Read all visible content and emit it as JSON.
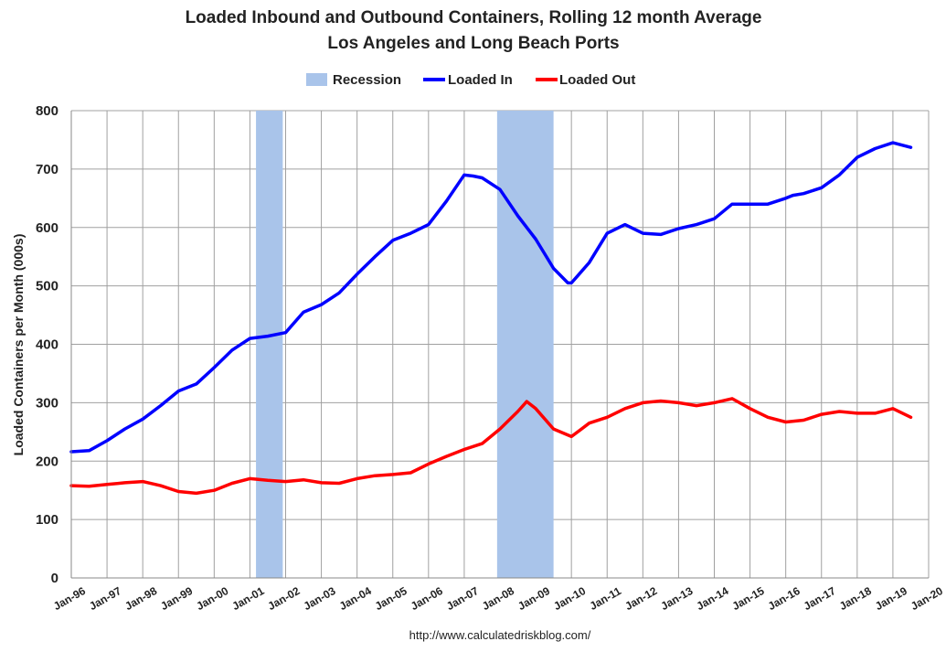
{
  "chart_data": {
    "type": "line",
    "title": "Loaded Inbound and Outbound Containers, Rolling 12 month Average",
    "subtitle": "Los Angeles and Long Beach Ports",
    "ylabel": "Loaded Containers per Month (000s)",
    "xlabel": "",
    "ylim": [
      0,
      800
    ],
    "yticks": [
      0,
      100,
      200,
      300,
      400,
      500,
      600,
      700,
      800
    ],
    "xlim": [
      1996,
      2020
    ],
    "xtick_labels": [
      "Jan-96",
      "Jan-97",
      "Jan-98",
      "Jan-99",
      "Jan-00",
      "Jan-01",
      "Jan-02",
      "Jan-03",
      "Jan-04",
      "Jan-05",
      "Jan-06",
      "Jan-07",
      "Jan-08",
      "Jan-09",
      "Jan-10",
      "Jan-11",
      "Jan-12",
      "Jan-13",
      "Jan-14",
      "Jan-15",
      "Jan-16",
      "Jan-17",
      "Jan-18",
      "Jan-19",
      "Jan-20"
    ],
    "grid": true,
    "legend_position": "top-center",
    "legend": [
      {
        "name": "Recession",
        "color": "#a9c4ea",
        "kind": "box"
      },
      {
        "name": "Loaded In",
        "color": "#0000ff",
        "kind": "line"
      },
      {
        "name": "Loaded Out",
        "color": "#ff0000",
        "kind": "line"
      }
    ],
    "recessions": [
      {
        "start": 2001.17,
        "end": 2001.92
      },
      {
        "start": 2007.92,
        "end": 2009.5
      }
    ],
    "series": [
      {
        "name": "Loaded In",
        "color": "#0000ff",
        "x": [
          1996.0,
          1996.5,
          1997.0,
          1997.5,
          1998.0,
          1998.5,
          1999.0,
          1999.5,
          2000.0,
          2000.5,
          2001.0,
          2001.5,
          2002.0,
          2002.5,
          2003.0,
          2003.5,
          2004.0,
          2004.5,
          2005.0,
          2005.5,
          2006.0,
          2006.5,
          2007.0,
          2007.25,
          2007.5,
          2008.0,
          2008.5,
          2009.0,
          2009.5,
          2009.9,
          2010.0,
          2010.5,
          2011.0,
          2011.5,
          2012.0,
          2012.5,
          2013.0,
          2013.5,
          2014.0,
          2014.5,
          2015.0,
          2015.5,
          2016.0,
          2016.2,
          2016.5,
          2017.0,
          2017.5,
          2018.0,
          2018.5,
          2019.0,
          2019.5
        ],
        "y": [
          216,
          218,
          235,
          255,
          272,
          295,
          320,
          332,
          360,
          390,
          410,
          414,
          420,
          455,
          468,
          488,
          520,
          550,
          578,
          590,
          605,
          645,
          690,
          688,
          685,
          665,
          620,
          580,
          530,
          505,
          505,
          540,
          590,
          605,
          590,
          588,
          598,
          605,
          615,
          640,
          640,
          640,
          650,
          655,
          658,
          668,
          690,
          720,
          735,
          745,
          737
        ]
      },
      {
        "name": "Loaded Out",
        "color": "#ff0000",
        "x": [
          1996.0,
          1996.5,
          1997.0,
          1997.5,
          1998.0,
          1998.5,
          1999.0,
          1999.5,
          2000.0,
          2000.5,
          2001.0,
          2001.5,
          2002.0,
          2002.5,
          2003.0,
          2003.5,
          2004.0,
          2004.5,
          2005.0,
          2005.5,
          2006.0,
          2006.5,
          2007.0,
          2007.5,
          2008.0,
          2008.5,
          2008.75,
          2009.0,
          2009.5,
          2010.0,
          2010.5,
          2011.0,
          2011.5,
          2012.0,
          2012.5,
          2013.0,
          2013.5,
          2014.0,
          2014.5,
          2015.0,
          2015.5,
          2016.0,
          2016.5,
          2017.0,
          2017.5,
          2018.0,
          2018.5,
          2019.0,
          2019.5
        ],
        "y": [
          158,
          157,
          160,
          163,
          165,
          158,
          148,
          145,
          150,
          162,
          170,
          167,
          165,
          168,
          163,
          162,
          170,
          175,
          177,
          180,
          195,
          208,
          220,
          230,
          255,
          285,
          302,
          290,
          255,
          242,
          265,
          275,
          290,
          300,
          303,
          300,
          295,
          300,
          307,
          290,
          275,
          267,
          270,
          280,
          285,
          282,
          282,
          290,
          275
        ]
      }
    ]
  },
  "source_url": "http://www.calculatedriskblog.com/"
}
